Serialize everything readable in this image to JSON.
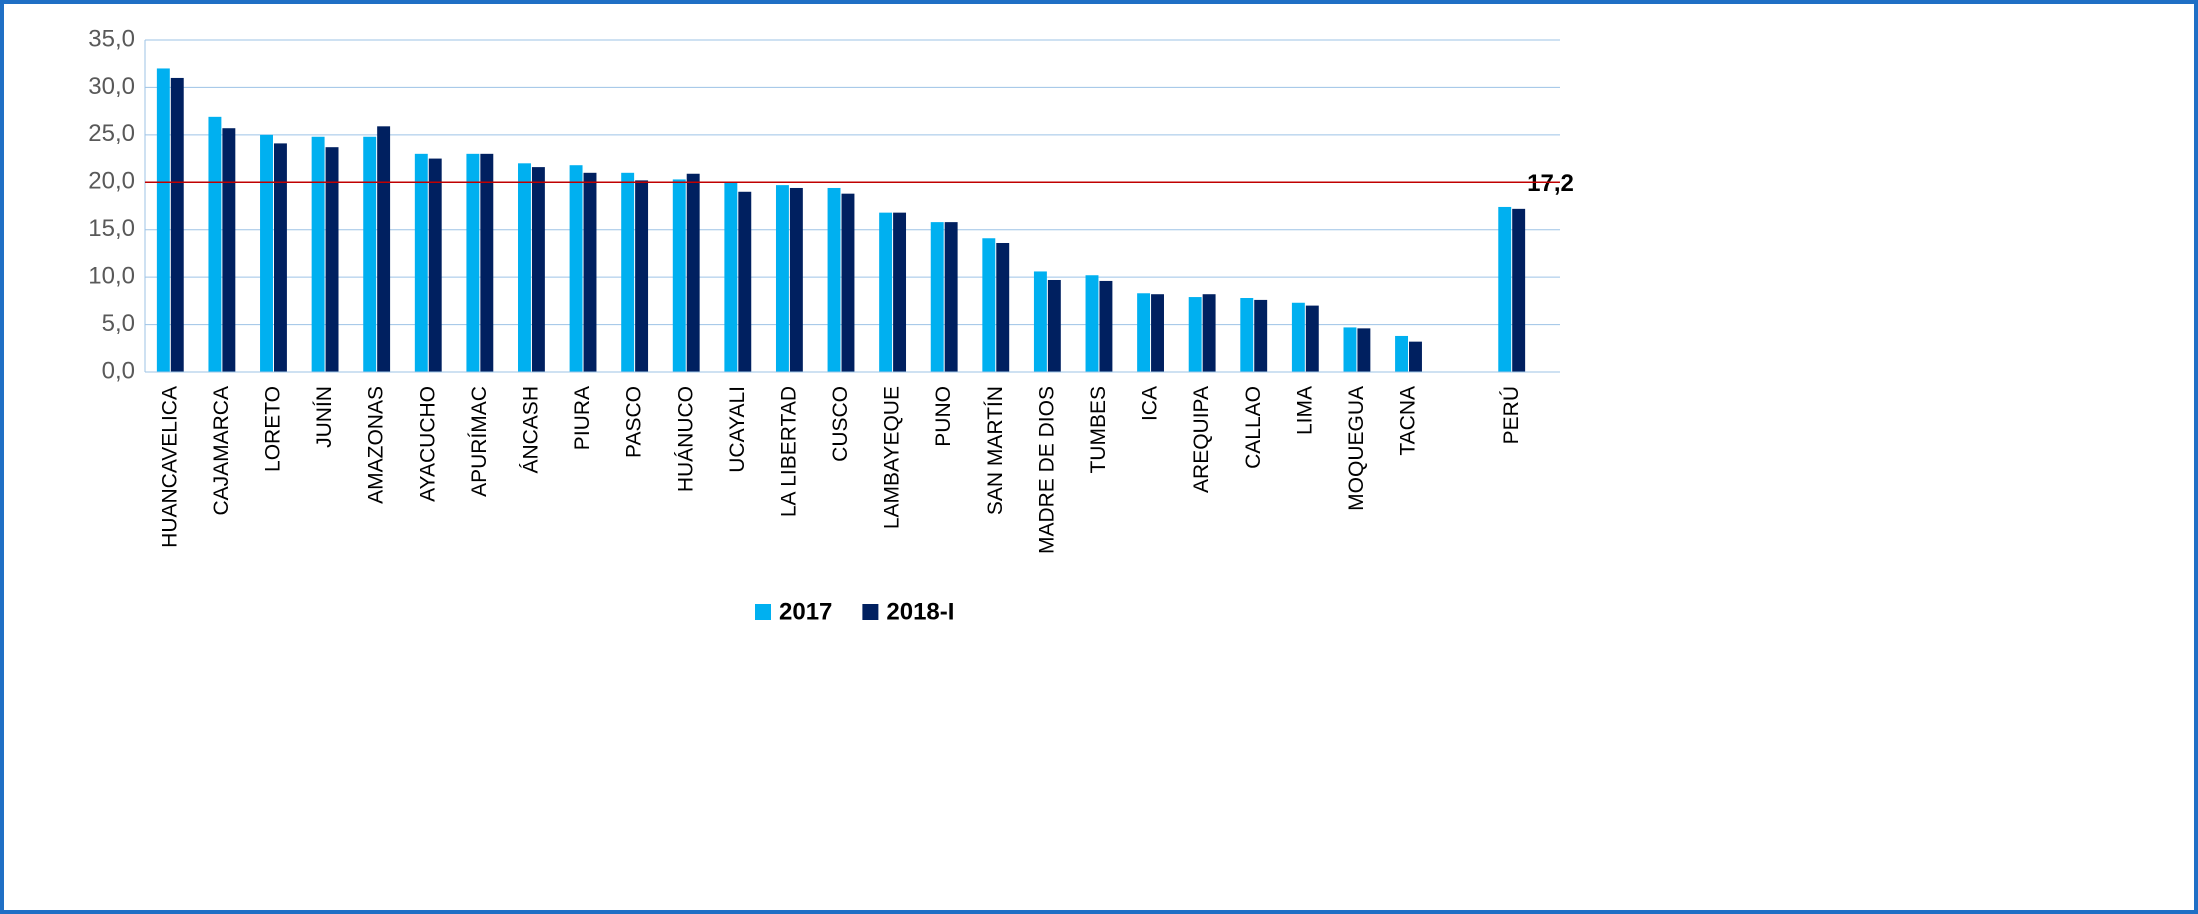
{
  "chart_data": {
    "type": "bar",
    "categories": [
      "HUANCAVELICA",
      "CAJAMARCA",
      "LORETO",
      "JUNÍN",
      "AMAZONAS",
      "AYACUCHO",
      "APURÍMAC",
      "ÁNCASH",
      "PIURA",
      "PASCO",
      "HUÁNUCO",
      "UCAYALI",
      "LA LIBERTAD",
      "CUSCO",
      "LAMBAYEQUE",
      "PUNO",
      "SAN MARTÍN",
      "MADRE DE DIOS",
      "TUMBES",
      "ICA",
      "AREQUIPA",
      "CALLAO",
      "LIMA",
      "MOQUEGUA",
      "TACNA",
      null,
      "PERÚ"
    ],
    "series": [
      {
        "name": "2017",
        "color": "#00b0f0",
        "values": [
          32.0,
          26.9,
          25.0,
          24.8,
          24.8,
          23.0,
          23.0,
          22.0,
          21.8,
          21.0,
          20.3,
          20.0,
          19.7,
          19.4,
          16.8,
          15.8,
          14.1,
          10.6,
          10.2,
          8.3,
          7.9,
          7.8,
          7.3,
          4.7,
          3.8,
          null,
          17.4
        ]
      },
      {
        "name": "2018-I",
        "color": "#002060",
        "values": [
          31.0,
          25.7,
          24.1,
          23.7,
          25.9,
          22.5,
          23.0,
          21.6,
          21.0,
          20.2,
          20.9,
          19.0,
          19.4,
          18.8,
          16.8,
          15.8,
          13.6,
          9.7,
          9.6,
          8.2,
          8.2,
          7.6,
          7.0,
          4.6,
          3.2,
          null,
          17.2
        ],
        "value_labels": [
          null,
          null,
          null,
          null,
          null,
          null,
          null,
          null,
          null,
          null,
          null,
          null,
          null,
          null,
          null,
          null,
          null,
          null,
          null,
          null,
          null,
          null,
          null,
          null,
          null,
          null,
          "17,2"
        ]
      }
    ],
    "ylim": [
      0,
      35
    ],
    "yticks": [
      {
        "value": 0,
        "label": "0,0"
      },
      {
        "value": 5,
        "label": "5,0"
      },
      {
        "value": 10,
        "label": "10,0"
      },
      {
        "value": 15,
        "label": "15,0"
      },
      {
        "value": 20,
        "label": "20,0"
      },
      {
        "value": 25,
        "label": "25,0"
      },
      {
        "value": 30,
        "label": "30,0"
      },
      {
        "value": 35,
        "label": "35,0"
      }
    ],
    "grid": true,
    "reference_line": {
      "value": 20,
      "color": "#c00000"
    },
    "legend": "bottom"
  }
}
